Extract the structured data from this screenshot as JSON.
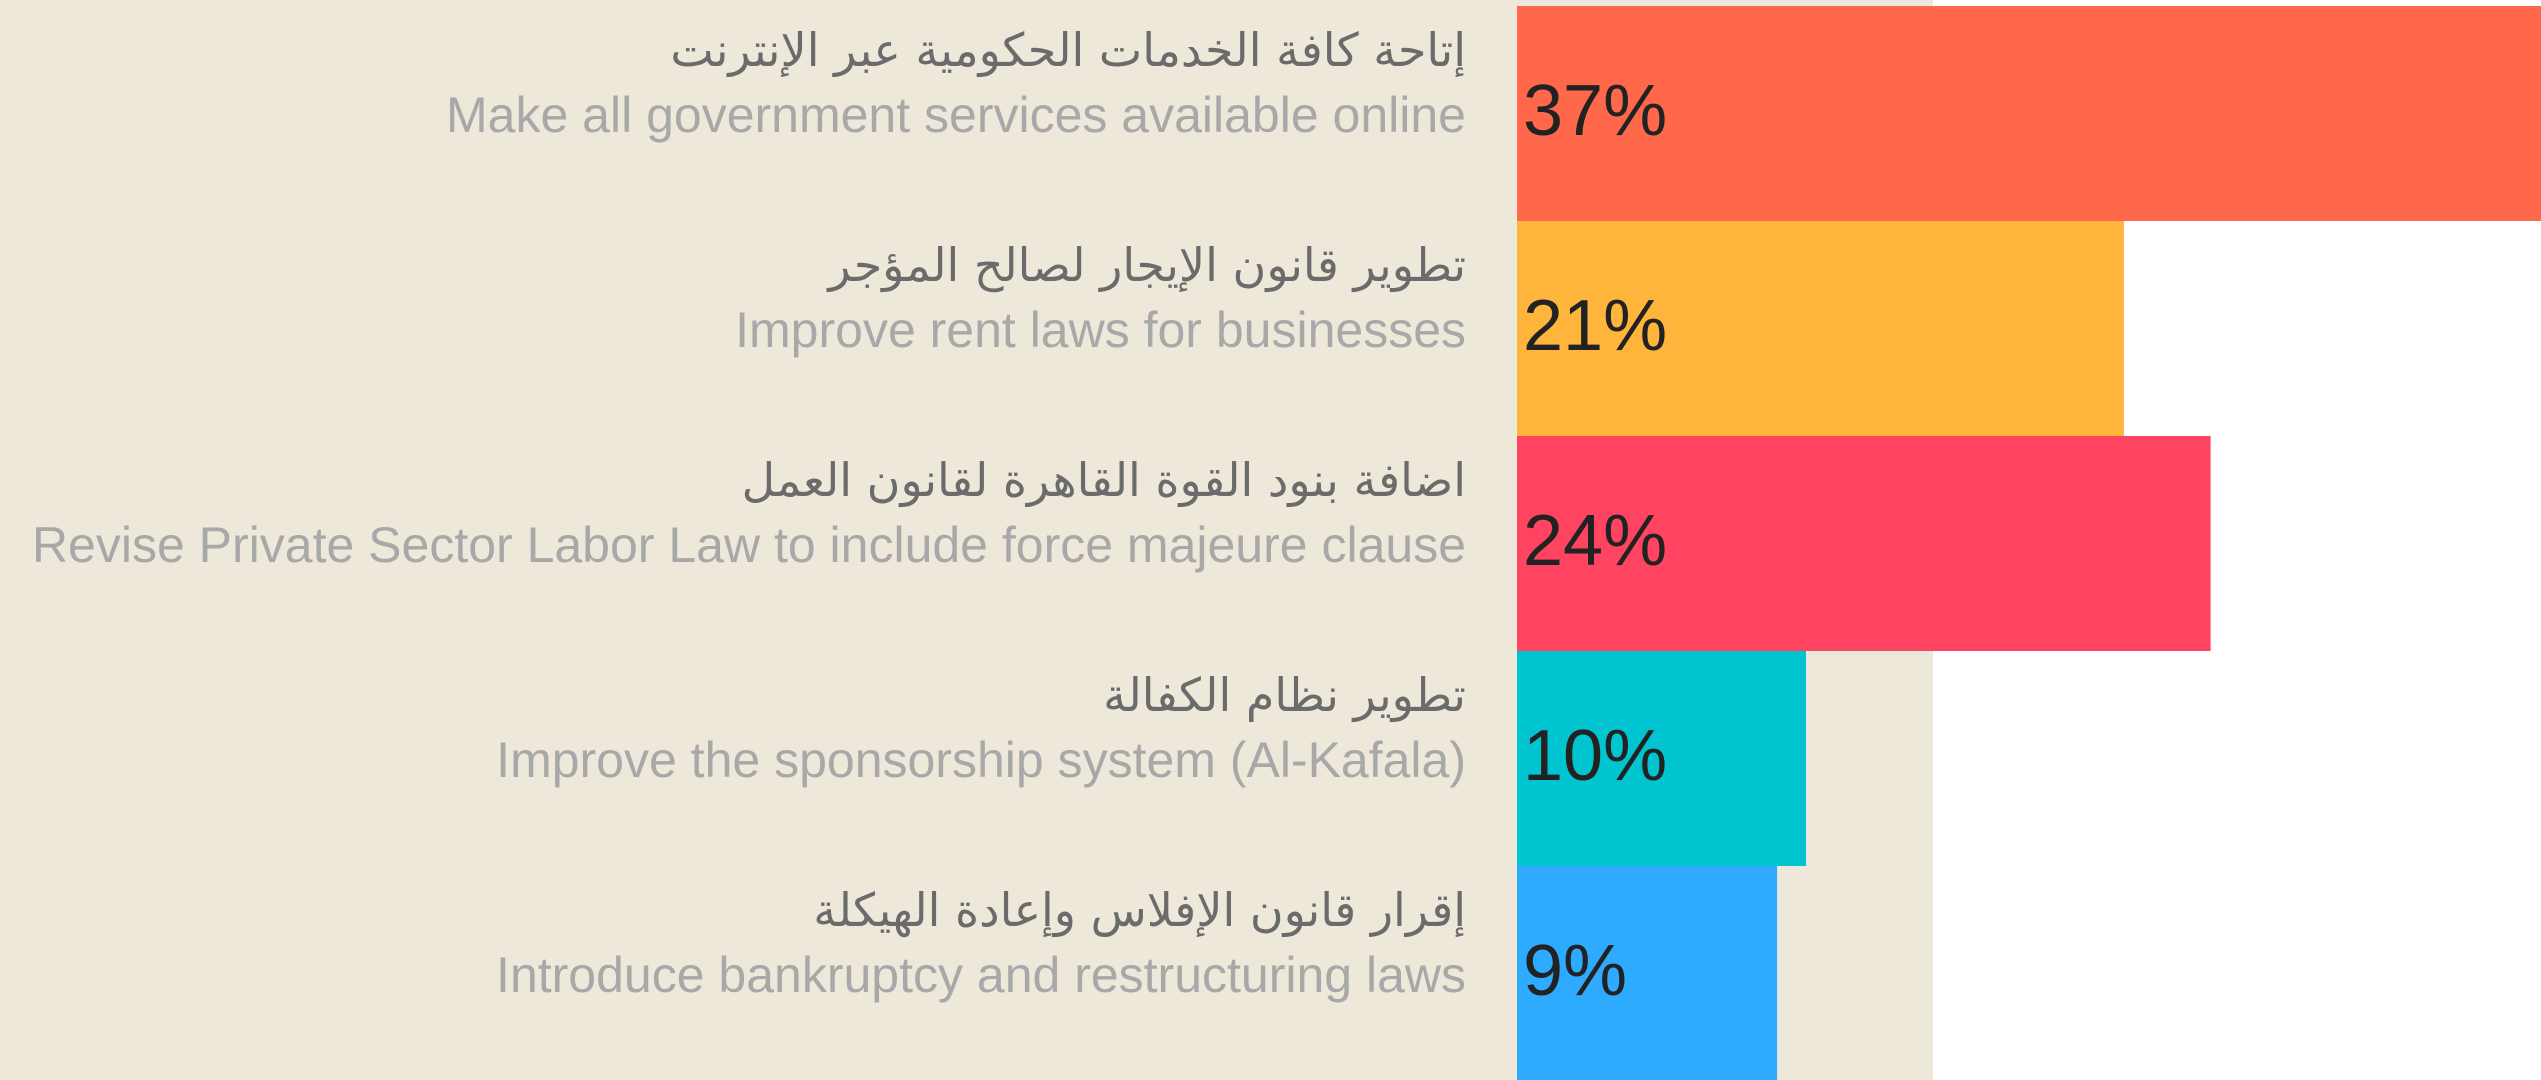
{
  "chart_data": {
    "type": "bar",
    "categories_ar": [
      "إتاحة كافة الخدمات الحكومية عبر الإنترنت",
      "تطوير قانون الإيجار لصالح المؤجر",
      "اضافة بنود القوة القاهرة لقانون العمل",
      "تطوير نظام الكفالة",
      "إقرار قانون الإفلاس وإعادة الهيكلة"
    ],
    "categories": [
      "Make all government services available online",
      "Improve rent laws for businesses",
      "Revise Private Sector Labor Law to include force majeure clause",
      "Improve the sponsorship system (Al-Kafala)",
      "Introduce bankruptcy and restructuring laws"
    ],
    "values": [
      37,
      21,
      24,
      10,
      9
    ],
    "value_labels": [
      "37%",
      "21%",
      "24%",
      "10%",
      "9%"
    ],
    "colors": [
      "#FF684A",
      "#FFB53B",
      "#FF4461",
      "#00C4CF",
      "#2EAAFF"
    ]
  }
}
